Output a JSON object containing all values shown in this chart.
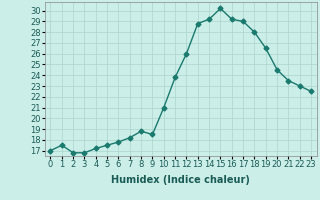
{
  "x": [
    0,
    1,
    2,
    3,
    4,
    5,
    6,
    7,
    8,
    9,
    10,
    11,
    12,
    13,
    14,
    15,
    16,
    17,
    18,
    19,
    20,
    21,
    22,
    23
  ],
  "y": [
    17.0,
    17.5,
    16.8,
    16.8,
    17.2,
    17.5,
    17.8,
    18.2,
    18.8,
    18.5,
    21.0,
    23.8,
    26.0,
    28.8,
    29.2,
    30.2,
    29.2,
    29.0,
    28.0,
    26.5,
    24.5,
    23.5,
    23.0,
    22.5
  ],
  "line_color": "#1a7a6e",
  "marker": "D",
  "markersize": 2.5,
  "linewidth": 1.0,
  "bg_color": "#cceee8",
  "plot_bg_color": "#cceee8",
  "grid_color": "#aad4cc",
  "xlabel": "Humidex (Indice chaleur)",
  "xlabel_fontsize": 7,
  "tick_fontsize": 6,
  "ylim": [
    16.5,
    30.8
  ],
  "yticks": [
    17,
    18,
    19,
    20,
    21,
    22,
    23,
    24,
    25,
    26,
    27,
    28,
    29,
    30
  ],
  "xticks": [
    0,
    1,
    2,
    3,
    4,
    5,
    6,
    7,
    8,
    9,
    10,
    11,
    12,
    13,
    14,
    15,
    16,
    17,
    18,
    19,
    20,
    21,
    22,
    23
  ],
  "xlim": [
    -0.5,
    23.5
  ]
}
